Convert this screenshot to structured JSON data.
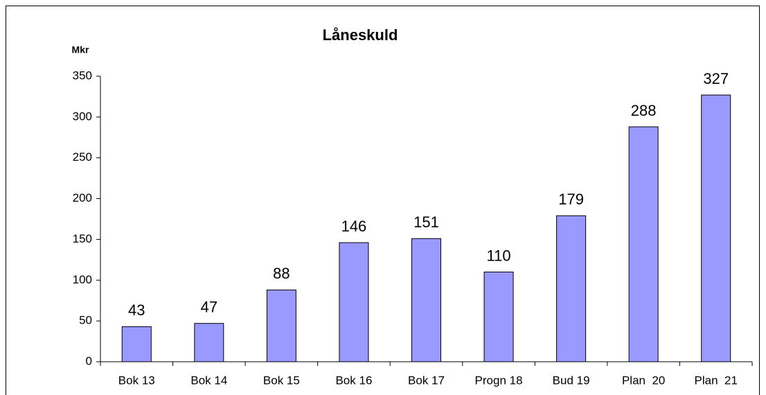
{
  "chart_data": {
    "type": "bar",
    "title": "Låneskuld",
    "y_label": "Mkr",
    "categories": [
      "Bok 13",
      "Bok 14",
      "Bok 15",
      "Bok 16",
      "Bok 17",
      "Progn 18",
      "Bud 19",
      "Plan  20",
      "Plan  21"
    ],
    "values": [
      43,
      47,
      88,
      146,
      151,
      110,
      179,
      288,
      327
    ],
    "color": "#9999ff",
    "ylim": [
      0,
      350
    ],
    "yticks": [
      0,
      50,
      100,
      150,
      200,
      250,
      300,
      350
    ],
    "grid": false
  }
}
